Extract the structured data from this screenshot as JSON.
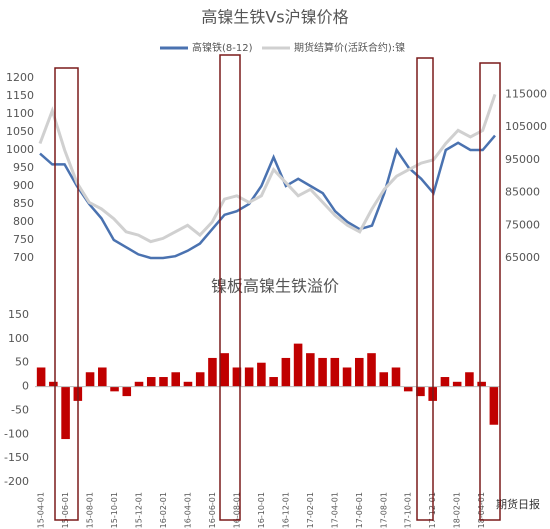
{
  "chart_data": [
    {
      "type": "line",
      "title": "高镍生铁Vs沪镍价格",
      "series": [
        {
          "name": "高镍铁(8-12)",
          "color": "#4a72b0",
          "values": [
            990,
            960,
            960,
            900,
            850,
            810,
            750,
            730,
            710,
            700,
            700,
            705,
            720,
            740,
            780,
            820,
            830,
            850,
            900,
            980,
            900,
            920,
            900,
            880,
            830,
            800,
            780,
            790,
            880,
            1000,
            950,
            920,
            880,
            1000,
            1020,
            1000,
            1000,
            1040
          ]
        },
        {
          "name": "期货结算价(活跃合约):镍",
          "color": "#d0d0d0",
          "axis": "y2",
          "values": [
            100000,
            110000,
            98000,
            88000,
            82000,
            80000,
            77000,
            73000,
            72000,
            70000,
            71000,
            73000,
            75000,
            72000,
            76000,
            83000,
            84000,
            82000,
            84000,
            92000,
            88000,
            84000,
            86000,
            82000,
            78000,
            75000,
            73000,
            80000,
            86000,
            90000,
            92000,
            94000,
            95000,
            100000,
            104000,
            102000,
            104000,
            115000
          ]
        }
      ],
      "ylim": [
        700,
        1200
      ],
      "yticks": [
        700,
        750,
        800,
        850,
        900,
        950,
        1000,
        1050,
        1100,
        1150,
        1200
      ],
      "y2lim": [
        65000,
        120000
      ],
      "y2ticks": [
        65000,
        75000,
        85000,
        95000,
        105000,
        115000
      ]
    },
    {
      "type": "bar",
      "title": "镍板高镍生铁溢价",
      "categories": [
        "2015-04-01",
        null,
        "2015-06-01",
        null,
        "2015-08-01",
        null,
        "2015-10-01",
        null,
        "2015-12-01",
        null,
        "2016-02-01",
        null,
        "2016-04-01",
        null,
        "2016-06-01",
        null,
        "2016-08-01",
        null,
        "2016-10-01",
        null,
        "2016-12-01",
        null,
        "2017-02-01",
        null,
        "2017-04-01",
        null,
        "2017-06-01",
        null,
        "2017-08-01",
        null,
        "2017-10-01",
        null,
        "2017-12-01",
        null,
        "2018-02-01",
        null,
        "2018-04-01",
        null
      ],
      "values": [
        40,
        10,
        -110,
        -30,
        30,
        40,
        -10,
        -20,
        10,
        20,
        20,
        30,
        10,
        30,
        60,
        70,
        40,
        40,
        50,
        20,
        60,
        90,
        70,
        60,
        60,
        40,
        60,
        70,
        30,
        40,
        -10,
        -20,
        -30,
        20,
        10,
        30,
        10,
        -80
      ],
      "color": "#c00000",
      "ylim": [
        -200,
        150
      ],
      "yticks": [
        -200,
        -150,
        -100,
        -50,
        0,
        50,
        100,
        150
      ]
    }
  ],
  "watermark": "期货日报"
}
